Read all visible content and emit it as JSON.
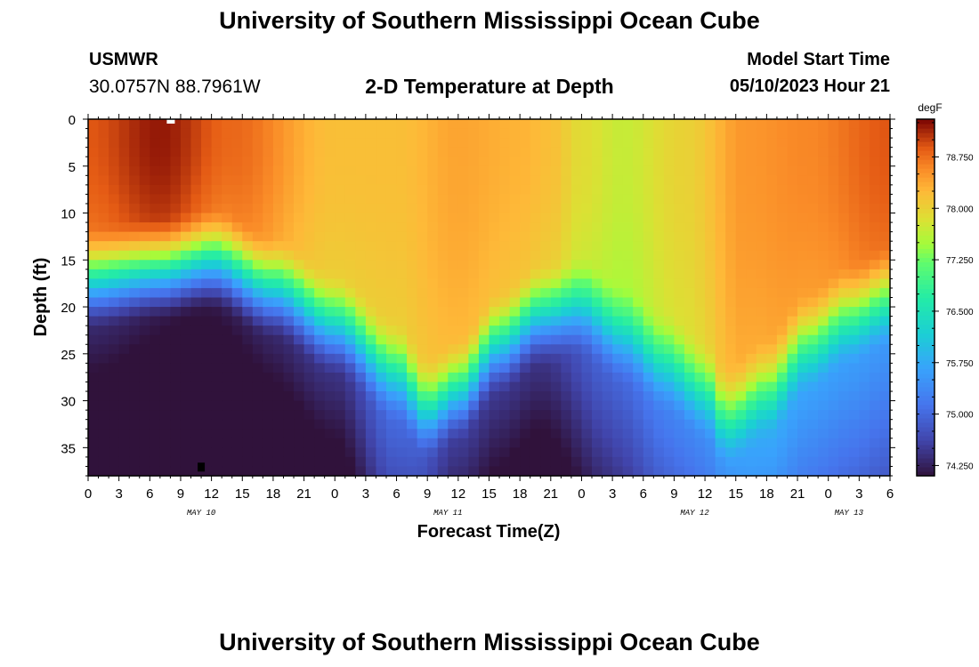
{
  "page": {
    "title": "University of Southern Mississippi Ocean Cube",
    "footer_title": "University of Southern Mississippi Ocean Cube",
    "station": {
      "name": "USMWR",
      "coords": "30.0757N  88.7961W"
    },
    "subtitle": "2-D Temperature at Depth",
    "model_start": {
      "label": "Model Start Time",
      "value": "05/10/2023 Hour 21"
    }
  },
  "chart_data": {
    "type": "heatmap",
    "title": "2-D Temperature at Depth",
    "xlabel": "Forecast Time(Z)",
    "ylabel": "Depth (ft)",
    "units": "degF",
    "x_range_hours": [
      0,
      78
    ],
    "x_tick_labels": [
      "0",
      "3",
      "6",
      "9",
      "12",
      "15",
      "18",
      "21",
      "0",
      "3",
      "6",
      "9",
      "12",
      "15",
      "18",
      "21",
      "0",
      "3",
      "6",
      "9",
      "12",
      "15",
      "18",
      "21",
      "0",
      "3",
      "6"
    ],
    "date_labels": [
      {
        "label": "MAY 10",
        "hour": 11
      },
      {
        "label": "MAY 11",
        "hour": 35
      },
      {
        "label": "MAY 12",
        "hour": 59
      },
      {
        "label": "MAY 13",
        "hour": 74
      }
    ],
    "y_range": [
      0,
      38
    ],
    "y_ticks": [
      0,
      5,
      10,
      15,
      20,
      25,
      30,
      35
    ],
    "colorbar": {
      "min": 74.1,
      "max": 79.3,
      "ticks": [
        "74.250",
        "75.000",
        "75.750",
        "76.500",
        "77.250",
        "78.000",
        "78.750"
      ],
      "tick_values": [
        74.25,
        75.0,
        75.75,
        76.5,
        77.25,
        78.0,
        78.75
      ]
    },
    "thermocline_base_depth_ft": [
      [
        0,
        11
      ],
      [
        7,
        10
      ],
      [
        12,
        9
      ],
      [
        18,
        12
      ],
      [
        24,
        16
      ],
      [
        30,
        21
      ],
      [
        33,
        25
      ],
      [
        36,
        23
      ],
      [
        40,
        18
      ],
      [
        44,
        15
      ],
      [
        48,
        14
      ],
      [
        52,
        17
      ],
      [
        56,
        20
      ],
      [
        60,
        23
      ],
      [
        62,
        26
      ],
      [
        66,
        23
      ],
      [
        70,
        18
      ],
      [
        74,
        15
      ],
      [
        78,
        13
      ]
    ],
    "surface_temp_degF": [
      [
        0,
        78.9
      ],
      [
        7,
        79.2
      ],
      [
        14,
        78.8
      ],
      [
        24,
        78.2
      ],
      [
        30,
        78.2
      ],
      [
        36,
        78.4
      ],
      [
        42,
        78.3
      ],
      [
        45,
        78.2
      ],
      [
        48,
        77.9
      ],
      [
        52,
        77.7
      ],
      [
        58,
        78.0
      ],
      [
        64,
        78.5
      ],
      [
        70,
        78.6
      ],
      [
        78,
        78.9
      ]
    ],
    "bottom_temp_degF": [
      [
        0,
        74.3
      ],
      [
        10,
        74.1
      ],
      [
        24,
        74.4
      ],
      [
        30,
        75.0
      ],
      [
        36,
        74.5
      ],
      [
        44,
        74.4
      ],
      [
        50,
        74.9
      ],
      [
        58,
        75.3
      ],
      [
        66,
        75.7
      ],
      [
        72,
        75.6
      ],
      [
        78,
        75.5
      ]
    ]
  }
}
